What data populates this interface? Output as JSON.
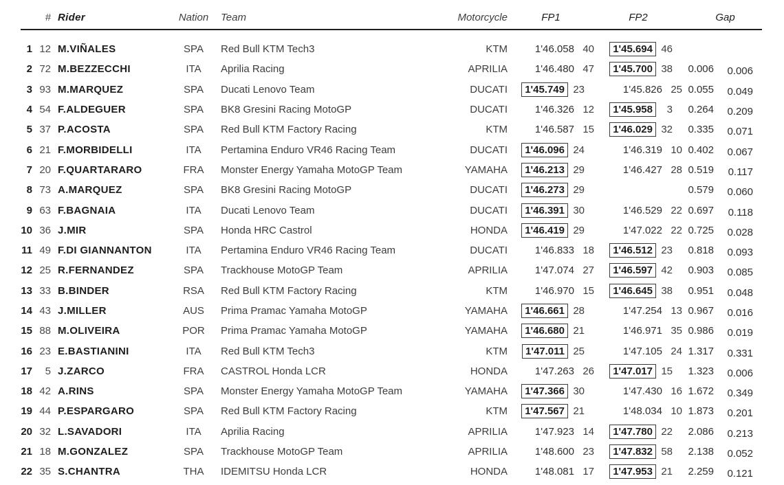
{
  "table": {
    "headers": {
      "pos": "#",
      "rider": "Rider",
      "nation": "Nation",
      "team": "Team",
      "motorcycle": "Motorcycle",
      "fp1": "FP1",
      "fp2": "FP2",
      "gap": "Gap"
    },
    "rows": [
      {
        "pos": "1",
        "num": "12",
        "rider": "M.VIÑALES",
        "nation": "SPA",
        "team": "Red Bull KTM Tech3",
        "moto": "KTM",
        "fp1": {
          "time": "1'46.058",
          "laps": "40",
          "best": false
        },
        "fp2": {
          "time": "1'45.694",
          "laps": "46",
          "best": true
        },
        "gap1": "",
        "gap2": ""
      },
      {
        "pos": "2",
        "num": "72",
        "rider": "M.BEZZECCHI",
        "nation": "ITA",
        "team": "Aprilia Racing",
        "moto": "APRILIA",
        "fp1": {
          "time": "1'46.480",
          "laps": "47",
          "best": false
        },
        "fp2": {
          "time": "1'45.700",
          "laps": "38",
          "best": true
        },
        "gap1": "0.006",
        "gap2": "0.006"
      },
      {
        "pos": "3",
        "num": "93",
        "rider": "M.MARQUEZ",
        "nation": "SPA",
        "team": "Ducati Lenovo Team",
        "moto": "DUCATI",
        "fp1": {
          "time": "1'45.749",
          "laps": "23",
          "best": true
        },
        "fp2": {
          "time": "1'45.826",
          "laps": "25",
          "best": false
        },
        "gap1": "0.055",
        "gap2": "0.049"
      },
      {
        "pos": "4",
        "num": "54",
        "rider": "F.ALDEGUER",
        "nation": "SPA",
        "team": "BK8 Gresini Racing MotoGP",
        "moto": "DUCATI",
        "fp1": {
          "time": "1'46.326",
          "laps": "12",
          "best": false
        },
        "fp2": {
          "time": "1'45.958",
          "laps": "3",
          "best": true
        },
        "gap1": "0.264",
        "gap2": "0.209"
      },
      {
        "pos": "5",
        "num": "37",
        "rider": "P.ACOSTA",
        "nation": "SPA",
        "team": "Red Bull KTM Factory Racing",
        "moto": "KTM",
        "fp1": {
          "time": "1'46.587",
          "laps": "15",
          "best": false
        },
        "fp2": {
          "time": "1'46.029",
          "laps": "32",
          "best": true
        },
        "gap1": "0.335",
        "gap2": "0.071"
      },
      {
        "pos": "6",
        "num": "21",
        "rider": "F.MORBIDELLI",
        "nation": "ITA",
        "team": "Pertamina Enduro VR46 Racing Team",
        "moto": "DUCATI",
        "fp1": {
          "time": "1'46.096",
          "laps": "24",
          "best": true
        },
        "fp2": {
          "time": "1'46.319",
          "laps": "10",
          "best": false
        },
        "gap1": "0.402",
        "gap2": "0.067"
      },
      {
        "pos": "7",
        "num": "20",
        "rider": "F.QUARTARARO",
        "nation": "FRA",
        "team": "Monster Energy Yamaha MotoGP Team",
        "moto": "YAMAHA",
        "fp1": {
          "time": "1'46.213",
          "laps": "29",
          "best": true
        },
        "fp2": {
          "time": "1'46.427",
          "laps": "28",
          "best": false
        },
        "gap1": "0.519",
        "gap2": "0.117"
      },
      {
        "pos": "8",
        "num": "73",
        "rider": "A.MARQUEZ",
        "nation": "SPA",
        "team": "BK8 Gresini Racing MotoGP",
        "moto": "DUCATI",
        "fp1": {
          "time": "1'46.273",
          "laps": "29",
          "best": true
        },
        "fp2": {
          "time": "",
          "laps": "",
          "best": false
        },
        "gap1": "0.579",
        "gap2": "0.060"
      },
      {
        "pos": "9",
        "num": "63",
        "rider": "F.BAGNAIA",
        "nation": "ITA",
        "team": "Ducati Lenovo Team",
        "moto": "DUCATI",
        "fp1": {
          "time": "1'46.391",
          "laps": "30",
          "best": true
        },
        "fp2": {
          "time": "1'46.529",
          "laps": "22",
          "best": false
        },
        "gap1": "0.697",
        "gap2": "0.118"
      },
      {
        "pos": "10",
        "num": "36",
        "rider": "J.MIR",
        "nation": "SPA",
        "team": "Honda HRC Castrol",
        "moto": "HONDA",
        "fp1": {
          "time": "1'46.419",
          "laps": "29",
          "best": true
        },
        "fp2": {
          "time": "1'47.022",
          "laps": "22",
          "best": false
        },
        "gap1": "0.725",
        "gap2": "0.028"
      },
      {
        "pos": "11",
        "num": "49",
        "rider": "F.DI GIANNANTON",
        "nation": "ITA",
        "team": "Pertamina Enduro VR46 Racing Team",
        "moto": "DUCATI",
        "fp1": {
          "time": "1'46.833",
          "laps": "18",
          "best": false
        },
        "fp2": {
          "time": "1'46.512",
          "laps": "23",
          "best": true
        },
        "gap1": "0.818",
        "gap2": "0.093"
      },
      {
        "pos": "12",
        "num": "25",
        "rider": "R.FERNANDEZ",
        "nation": "SPA",
        "team": "Trackhouse MotoGP Team",
        "moto": "APRILIA",
        "fp1": {
          "time": "1'47.074",
          "laps": "27",
          "best": false
        },
        "fp2": {
          "time": "1'46.597",
          "laps": "42",
          "best": true
        },
        "gap1": "0.903",
        "gap2": "0.085"
      },
      {
        "pos": "13",
        "num": "33",
        "rider": "B.BINDER",
        "nation": "RSA",
        "team": "Red Bull KTM Factory Racing",
        "moto": "KTM",
        "fp1": {
          "time": "1'46.970",
          "laps": "15",
          "best": false
        },
        "fp2": {
          "time": "1'46.645",
          "laps": "38",
          "best": true
        },
        "gap1": "0.951",
        "gap2": "0.048"
      },
      {
        "pos": "14",
        "num": "43",
        "rider": "J.MILLER",
        "nation": "AUS",
        "team": "Prima Pramac Yamaha MotoGP",
        "moto": "YAMAHA",
        "fp1": {
          "time": "1'46.661",
          "laps": "28",
          "best": true
        },
        "fp2": {
          "time": "1'47.254",
          "laps": "13",
          "best": false
        },
        "gap1": "0.967",
        "gap2": "0.016"
      },
      {
        "pos": "15",
        "num": "88",
        "rider": "M.OLIVEIRA",
        "nation": "POR",
        "team": "Prima Pramac Yamaha MotoGP",
        "moto": "YAMAHA",
        "fp1": {
          "time": "1'46.680",
          "laps": "21",
          "best": true
        },
        "fp2": {
          "time": "1'46.971",
          "laps": "35",
          "best": false
        },
        "gap1": "0.986",
        "gap2": "0.019"
      },
      {
        "pos": "16",
        "num": "23",
        "rider": "E.BASTIANINI",
        "nation": "ITA",
        "team": "Red Bull KTM Tech3",
        "moto": "KTM",
        "fp1": {
          "time": "1'47.011",
          "laps": "25",
          "best": true
        },
        "fp2": {
          "time": "1'47.105",
          "laps": "24",
          "best": false
        },
        "gap1": "1.317",
        "gap2": "0.331"
      },
      {
        "pos": "17",
        "num": "5",
        "rider": "J.ZARCO",
        "nation": "FRA",
        "team": "CASTROL Honda LCR",
        "moto": "HONDA",
        "fp1": {
          "time": "1'47.263",
          "laps": "26",
          "best": false
        },
        "fp2": {
          "time": "1'47.017",
          "laps": "15",
          "best": true
        },
        "gap1": "1.323",
        "gap2": "0.006"
      },
      {
        "pos": "18",
        "num": "42",
        "rider": "A.RINS",
        "nation": "SPA",
        "team": "Monster Energy Yamaha MotoGP Team",
        "moto": "YAMAHA",
        "fp1": {
          "time": "1'47.366",
          "laps": "30",
          "best": true
        },
        "fp2": {
          "time": "1'47.430",
          "laps": "16",
          "best": false
        },
        "gap1": "1.672",
        "gap2": "0.349"
      },
      {
        "pos": "19",
        "num": "44",
        "rider": "P.ESPARGARO",
        "nation": "SPA",
        "team": "Red Bull KTM Factory Racing",
        "moto": "KTM",
        "fp1": {
          "time": "1'47.567",
          "laps": "21",
          "best": true
        },
        "fp2": {
          "time": "1'48.034",
          "laps": "10",
          "best": false
        },
        "gap1": "1.873",
        "gap2": "0.201"
      },
      {
        "pos": "20",
        "num": "32",
        "rider": "L.SAVADORI",
        "nation": "ITA",
        "team": "Aprilia Racing",
        "moto": "APRILIA",
        "fp1": {
          "time": "1'47.923",
          "laps": "14",
          "best": false
        },
        "fp2": {
          "time": "1'47.780",
          "laps": "22",
          "best": true
        },
        "gap1": "2.086",
        "gap2": "0.213"
      },
      {
        "pos": "21",
        "num": "18",
        "rider": "M.GONZALEZ",
        "nation": "SPA",
        "team": "Trackhouse MotoGP Team",
        "moto": "APRILIA",
        "fp1": {
          "time": "1'48.600",
          "laps": "23",
          "best": false
        },
        "fp2": {
          "time": "1'47.832",
          "laps": "58",
          "best": true
        },
        "gap1": "2.138",
        "gap2": "0.052"
      },
      {
        "pos": "22",
        "num": "35",
        "rider": "S.CHANTRA",
        "nation": "THA",
        "team": "IDEMITSU Honda LCR",
        "moto": "HONDA",
        "fp1": {
          "time": "1'48.081",
          "laps": "17",
          "best": false
        },
        "fp2": {
          "time": "1'47.953",
          "laps": "21",
          "best": true
        },
        "gap1": "2.259",
        "gap2": "0.121"
      }
    ]
  },
  "colors": {
    "text": "#1d1d1b",
    "secondary": "#3d3d3b",
    "best_box_border": "#3a3a38",
    "header_rule": "#1d1d1b",
    "background": "#ffffff"
  }
}
